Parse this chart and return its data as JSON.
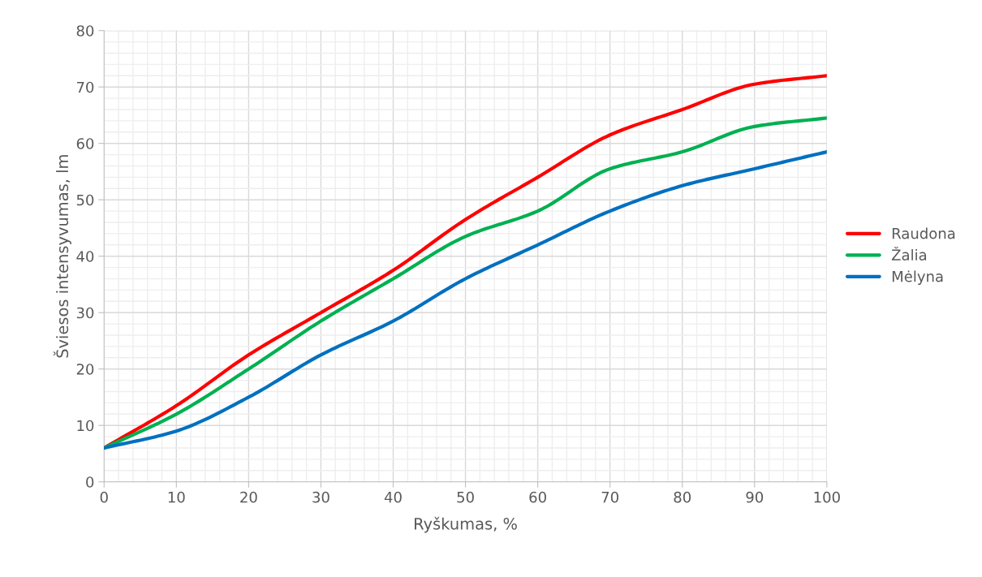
{
  "chart_data": {
    "type": "line",
    "xlabel": "Ryškumas, %",
    "ylabel": "Šviesos intensyvumas, lm",
    "x": [
      0,
      10,
      20,
      30,
      40,
      50,
      60,
      70,
      80,
      90,
      100
    ],
    "series": [
      {
        "name": "Raudona",
        "color": "#ff0000",
        "values": [
          6,
          13.5,
          22.5,
          30,
          37.5,
          46.5,
          54,
          61.5,
          66,
          70.5,
          72
        ]
      },
      {
        "name": "Žalia",
        "color": "#00b050",
        "values": [
          6,
          12,
          20,
          28.5,
          36,
          43.5,
          48,
          55.5,
          58.5,
          63,
          64.5
        ]
      },
      {
        "name": "Mėlyna",
        "color": "#0070c0",
        "values": [
          6,
          9,
          15,
          22.5,
          28.5,
          36,
          42,
          48,
          52.5,
          55.5,
          58.5
        ]
      }
    ],
    "xlim": [
      0,
      100
    ],
    "xticks": [
      0,
      10,
      20,
      30,
      40,
      50,
      60,
      70,
      80,
      90,
      100
    ],
    "ylim": [
      0,
      80
    ],
    "yticks": [
      0,
      10,
      20,
      30,
      40,
      50,
      60,
      70,
      80
    ],
    "grid": true,
    "legend": "right",
    "marker": "none",
    "line_style": "solid"
  }
}
